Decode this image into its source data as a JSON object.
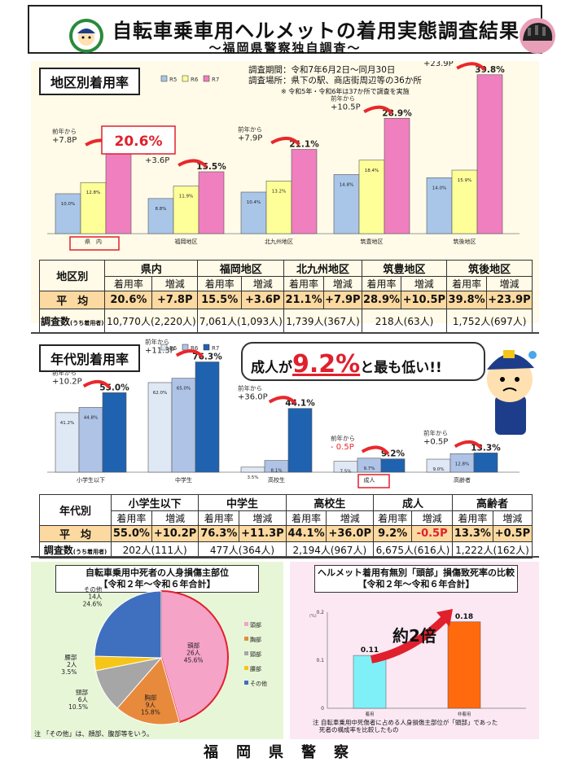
{
  "header": {
    "title": "自転車乗車用ヘルメットの着用実態調査結果",
    "subtitle": "～福岡県警察独自調査～"
  },
  "survey": {
    "period": "調査期間：令和7年6月2日～同月30日",
    "place": "調査場所：県下の駅、商店街周辺等の36か所",
    "note": "※ 令和5年・令和6年は37か所で調査を実施"
  },
  "colors": {
    "r5": "#a9c6e8",
    "r6": "#ffff99",
    "r7": "#f07fbf",
    "up": "#e8282c",
    "avg_row": "#fcd9a0"
  },
  "chart_data": [
    {
      "type": "bar",
      "title": "地区別着用率",
      "categories": [
        "県　内",
        "福岡地区",
        "北九州地区",
        "筑豊地区",
        "筑後地区"
      ],
      "series": [
        {
          "name": "R5",
          "values": [
            10.0,
            8.8,
            10.4,
            14.8,
            14.0
          ],
          "labels": [
            "10.0%",
            "8.8%",
            "10.4%",
            "14.8%",
            "14.0%"
          ]
        },
        {
          "name": "R6",
          "values": [
            12.8,
            11.9,
            13.2,
            18.4,
            15.9
          ],
          "labels": [
            "12.8%",
            "11.9%",
            "13.2%",
            "18.4%",
            "15.9%"
          ]
        },
        {
          "name": "R7",
          "values": [
            20.6,
            15.5,
            21.1,
            28.9,
            39.8
          ],
          "labels": [
            "20.6%",
            "15.5%",
            "21.1%",
            "28.9%",
            "39.8%"
          ]
        }
      ],
      "change_prefix": "前年から",
      "changes": [
        "+7.8P",
        "+3.6P",
        "+7.9P",
        "+10.5P",
        "+23.9P"
      ],
      "ylim": [
        0,
        42
      ]
    },
    {
      "type": "bar",
      "title": "年代別着用率",
      "categories": [
        "小学生以下",
        "中学生",
        "高校生",
        "成人",
        "高齢者"
      ],
      "series": [
        {
          "name": "R5",
          "values": [
            41.2,
            62.0,
            3.5,
            7.5,
            9.0
          ],
          "labels": [
            "41.2%",
            "62.0%",
            "3.5%",
            "7.5%",
            "9.0%"
          ]
        },
        {
          "name": "R6",
          "values": [
            44.8,
            65.0,
            8.1,
            9.7,
            12.8
          ],
          "labels": [
            "44.8%",
            "65.0%",
            "8.1%",
            "9.7%",
            "12.8%"
          ]
        },
        {
          "name": "R7",
          "values": [
            55.0,
            76.3,
            44.1,
            9.2,
            13.3
          ],
          "labels": [
            "55.0%",
            "76.3%",
            "44.1%",
            "9.2%",
            "13.3%"
          ]
        }
      ],
      "change_prefix": "前年から",
      "changes": [
        "+10.2P",
        "+11.3P",
        "+36.0P",
        "- 0.5P",
        "+0.5P"
      ],
      "ylim": [
        0,
        80
      ]
    },
    {
      "type": "pie",
      "title": "自転車乗用中死者の人身損傷主部位",
      "subtitle": "【令和２年～令和６年合計】",
      "slices": [
        {
          "name": "頭部",
          "count": "26人",
          "pct": "45.6%",
          "value": 45.6,
          "color": "#f5a3c7"
        },
        {
          "name": "胸部",
          "count": "9人",
          "pct": "15.8%",
          "value": 15.8,
          "color": "#e88a3c"
        },
        {
          "name": "頸部",
          "count": "6人",
          "pct": "10.5%",
          "value": 10.5,
          "color": "#a6a6a6"
        },
        {
          "name": "腰部",
          "count": "2人",
          "pct": "3.5%",
          "value": 3.5,
          "color": "#f5c518"
        },
        {
          "name": "その他",
          "count": "14人",
          "pct": "24.6%",
          "value": 24.6,
          "color": "#3f6fbf"
        }
      ],
      "note": "注 「その他」は、顔部、腹部等をいう。"
    },
    {
      "type": "bar",
      "title": "ヘルメット着用有無別「頭部」損傷致死率の比較",
      "subtitle": "【令和２年～令和６年合計】",
      "categories": [
        "着用",
        "非着用"
      ],
      "values": [
        0.11,
        0.18
      ],
      "labels": [
        "0.11",
        "0.18"
      ],
      "yticks": [
        "0.2",
        "0.1",
        "0"
      ],
      "yunit": "(%)",
      "ylim": [
        0,
        0.2
      ],
      "callout": "約2倍",
      "note1": "注 自転車乗用中死傷者に占める人身損傷主部位が「頭部」であった",
      "note2": "死者の構成率を比較したもの"
    }
  ],
  "district_table": {
    "header": "地区別",
    "groups": [
      "県内",
      "福岡地区",
      "北九州地区",
      "筑豊地区",
      "筑後地区"
    ],
    "sub1": "着用率",
    "sub2": "増減",
    "avg_label": "平　均",
    "avg": [
      [
        "20.6%",
        "+7.8P"
      ],
      [
        "15.5%",
        "+3.6P"
      ],
      [
        "21.1%",
        "+7.9P"
      ],
      [
        "28.9%",
        "+10.5P"
      ],
      [
        "39.8%",
        "+23.9P"
      ]
    ],
    "count_label": "調査数",
    "count_label_small": "(うち着用者)",
    "counts": [
      "10,770人(2,220人)",
      "7,061人(1,093人)",
      "1,739人(367人)",
      "218人(63人)",
      "1,752人(697人)"
    ]
  },
  "age_table": {
    "header": "年代別",
    "groups": [
      "小学生以下",
      "中学生",
      "高校生",
      "成人",
      "高齢者"
    ],
    "sub1": "着用率",
    "sub2": "増減",
    "avg_label": "平　均",
    "avg": [
      [
        "55.0%",
        "+10.2P"
      ],
      [
        "76.3%",
        "+11.3P"
      ],
      [
        "44.1%",
        "+36.0P"
      ],
      [
        "9.2%",
        "-0.5P"
      ],
      [
        "13.3%",
        "+0.5P"
      ]
    ],
    "count_label": "調査数",
    "count_label_small": "(うち着用者)",
    "counts": [
      "202人(111人)",
      "477人(364人)",
      "2,194人(967人)",
      "6,675人(616人)",
      "1,222人(162人)"
    ]
  },
  "bubble": {
    "prefix": "成人が",
    "value": "9.2%",
    "suffix": "と最も低い!!"
  },
  "footer": "福岡県警察"
}
